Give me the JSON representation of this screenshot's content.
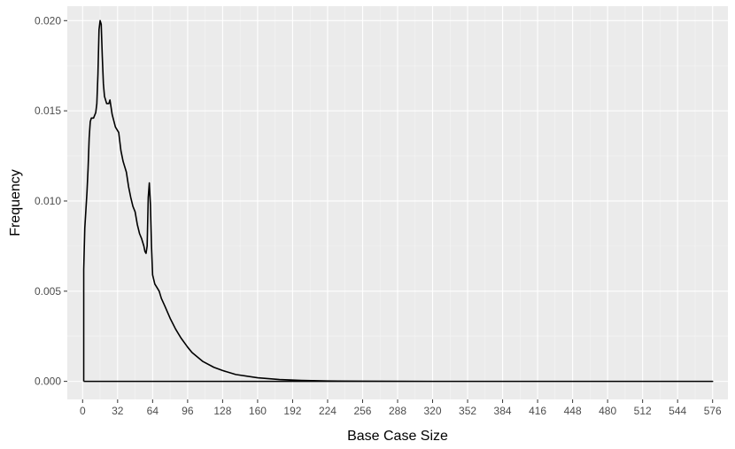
{
  "chart_data": {
    "type": "line",
    "title": "",
    "xlabel": "Base Case Size",
    "ylabel": "Frequency",
    "xlim": [
      -14,
      590
    ],
    "ylim": [
      -0.001,
      0.0208
    ],
    "x_ticks": [
      0,
      32,
      64,
      96,
      128,
      160,
      192,
      224,
      256,
      288,
      320,
      352,
      384,
      416,
      448,
      480,
      512,
      544,
      576
    ],
    "y_ticks": [
      0.0,
      0.005,
      0.01,
      0.015,
      0.02
    ],
    "y_tick_labels": [
      "0.000",
      "0.005",
      "0.010",
      "0.015",
      "0.020"
    ],
    "grid": true,
    "legend": "none",
    "colors": {
      "panel": "#ebebeb",
      "grid_major": "#ffffff",
      "grid_minor": "#f5f5f5",
      "line": "#000000"
    },
    "series": [
      {
        "x": [
          1,
          1,
          2,
          3,
          4,
          5,
          6,
          7,
          8,
          10,
          12,
          13,
          14,
          15,
          16,
          17,
          18,
          19,
          20,
          22,
          24,
          25,
          27,
          30,
          33,
          35,
          37,
          38,
          40,
          42,
          44,
          46,
          48,
          50,
          52,
          54,
          56,
          57,
          58,
          59,
          60,
          61,
          62,
          63,
          64,
          66,
          68,
          70,
          72,
          75,
          80,
          85,
          90,
          96,
          100,
          110,
          120,
          128,
          140,
          160,
          180,
          200,
          224,
          256,
          288,
          320,
          352,
          384,
          416,
          448,
          480,
          512,
          544,
          576,
          576,
          1
        ],
        "y": [
          0.0,
          0.0062,
          0.0085,
          0.0095,
          0.0105,
          0.0118,
          0.0135,
          0.0144,
          0.0146,
          0.0146,
          0.0149,
          0.0154,
          0.017,
          0.0195,
          0.02,
          0.0198,
          0.018,
          0.0165,
          0.0158,
          0.0154,
          0.0154,
          0.0156,
          0.0148,
          0.0141,
          0.0138,
          0.0128,
          0.0122,
          0.012,
          0.0116,
          0.0108,
          0.0102,
          0.0097,
          0.0094,
          0.0087,
          0.0082,
          0.0079,
          0.0075,
          0.0072,
          0.0071,
          0.0075,
          0.0102,
          0.011,
          0.0098,
          0.0075,
          0.0059,
          0.0054,
          0.0052,
          0.005,
          0.0046,
          0.0042,
          0.0035,
          0.0029,
          0.0024,
          0.0019,
          0.0016,
          0.0011,
          0.00078,
          0.0006,
          0.00038,
          0.0002,
          0.0001,
          5e-05,
          2e-05,
          8e-06,
          3e-06,
          0.0,
          0.0,
          0.0,
          0.0,
          0.0,
          0.0,
          0.0,
          0.0,
          0.0,
          0.0,
          0.0
        ]
      }
    ]
  }
}
